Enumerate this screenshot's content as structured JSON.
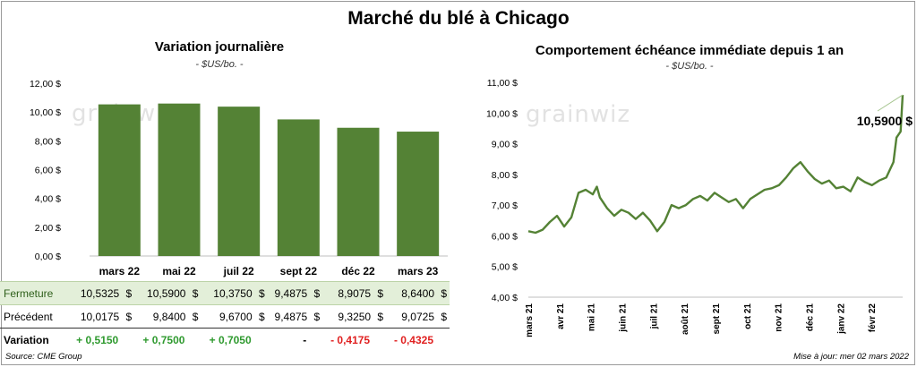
{
  "main_title": "Marché du blé à Chicago",
  "left_panel": {
    "title": "Variation journalière",
    "subtitle": "- $US/bo. -"
  },
  "right_panel": {
    "title": "Comportement échéance immédiate depuis 1 an",
    "subtitle": "- $US/bo. -",
    "last_value_label": "10,5900 $"
  },
  "watermark": "grainwiz",
  "colors": {
    "bar": "#548235",
    "line": "#548235",
    "positive": "#2f9a2f",
    "negative": "#e02020",
    "highlight_row": "#e3efd9"
  },
  "chart_data": [
    {
      "type": "bar",
      "title": "Variation journalière",
      "subtitle": "- $US/bo. -",
      "categories": [
        "mars 22",
        "mai 22",
        "juil 22",
        "sept 22",
        "déc 22",
        "mars 23"
      ],
      "values": [
        10.5325,
        10.59,
        10.375,
        9.4875,
        8.9075,
        8.64
      ],
      "ylim": [
        0,
        12
      ],
      "yticks": [
        "0,00 $",
        "2,00 $",
        "4,00 $",
        "6,00 $",
        "8,00 $",
        "10,00 $",
        "12,00 $"
      ],
      "grid": false
    },
    {
      "type": "line",
      "title": "Comportement échéance immédiate depuis 1 an",
      "subtitle": "- $US/bo. -",
      "ylim": [
        4,
        11
      ],
      "yticks": [
        "4,00 $",
        "5,00 $",
        "6,00 $",
        "7,00 $",
        "8,00 $",
        "9,00 $",
        "10,00 $",
        "11,00 $"
      ],
      "xticks": [
        "mars 21",
        "avr 21",
        "mai 21",
        "juin 21",
        "juil 21",
        "août 21",
        "sept 21",
        "oct 21",
        "nov 21",
        "déc 21",
        "janv 22",
        "févr 22"
      ],
      "x": [
        "2021-03-01",
        "2021-03-08",
        "2021-03-15",
        "2021-03-22",
        "2021-03-29",
        "2021-04-05",
        "2021-04-12",
        "2021-04-19",
        "2021-04-26",
        "2021-05-03",
        "2021-05-07",
        "2021-05-10",
        "2021-05-17",
        "2021-05-24",
        "2021-05-31",
        "2021-06-07",
        "2021-06-14",
        "2021-06-21",
        "2021-06-28",
        "2021-07-05",
        "2021-07-12",
        "2021-07-19",
        "2021-07-26",
        "2021-08-02",
        "2021-08-09",
        "2021-08-16",
        "2021-08-23",
        "2021-08-30",
        "2021-09-06",
        "2021-09-13",
        "2021-09-20",
        "2021-09-27",
        "2021-10-04",
        "2021-10-11",
        "2021-10-18",
        "2021-10-25",
        "2021-11-01",
        "2021-11-08",
        "2021-11-15",
        "2021-11-22",
        "2021-11-29",
        "2021-12-06",
        "2021-12-13",
        "2021-12-20",
        "2021-12-27",
        "2022-01-03",
        "2022-01-10",
        "2022-01-17",
        "2022-01-24",
        "2022-01-31",
        "2022-02-07",
        "2022-02-14",
        "2022-02-21",
        "2022-02-24",
        "2022-02-28",
        "2022-03-02"
      ],
      "y": [
        6.15,
        6.1,
        6.2,
        6.45,
        6.65,
        6.3,
        6.6,
        7.4,
        7.5,
        7.35,
        7.6,
        7.25,
        6.9,
        6.65,
        6.85,
        6.75,
        6.55,
        6.75,
        6.5,
        6.15,
        6.45,
        7.0,
        6.9,
        7.0,
        7.2,
        7.3,
        7.15,
        7.4,
        7.25,
        7.1,
        7.2,
        6.9,
        7.2,
        7.35,
        7.5,
        7.55,
        7.65,
        7.9,
        8.2,
        8.4,
        8.1,
        7.85,
        7.7,
        7.8,
        7.55,
        7.6,
        7.45,
        7.9,
        7.75,
        7.65,
        7.8,
        7.9,
        8.4,
        9.2,
        9.4,
        10.59
      ]
    }
  ],
  "table": {
    "rows": [
      {
        "label": "Fermeture",
        "cells": [
          {
            "num": "10,5325",
            "cur": "$"
          },
          {
            "num": "10,5900",
            "cur": "$"
          },
          {
            "num": "10,3750",
            "cur": "$"
          },
          {
            "num": "9,4875",
            "cur": "$"
          },
          {
            "num": "8,9075",
            "cur": "$"
          },
          {
            "num": "8,6400",
            "cur": "$"
          }
        ]
      },
      {
        "label": "Précédent",
        "cells": [
          {
            "num": "10,0175",
            "cur": "$"
          },
          {
            "num": "9,8400",
            "cur": "$"
          },
          {
            "num": "9,6700",
            "cur": "$"
          },
          {
            "num": "9,4875",
            "cur": "$"
          },
          {
            "num": "9,3250",
            "cur": "$"
          },
          {
            "num": "9,0725",
            "cur": "$"
          }
        ]
      }
    ],
    "variation": {
      "label": "Variation",
      "values": [
        "+ 0,5150",
        "+ 0,7500",
        "+ 0,7050",
        "-",
        "- 0,4175",
        "- 0,4325"
      ]
    }
  },
  "footer": {
    "source": "Source: CME Group",
    "updated": "Mise à jour: mer 02 mars 2022"
  }
}
